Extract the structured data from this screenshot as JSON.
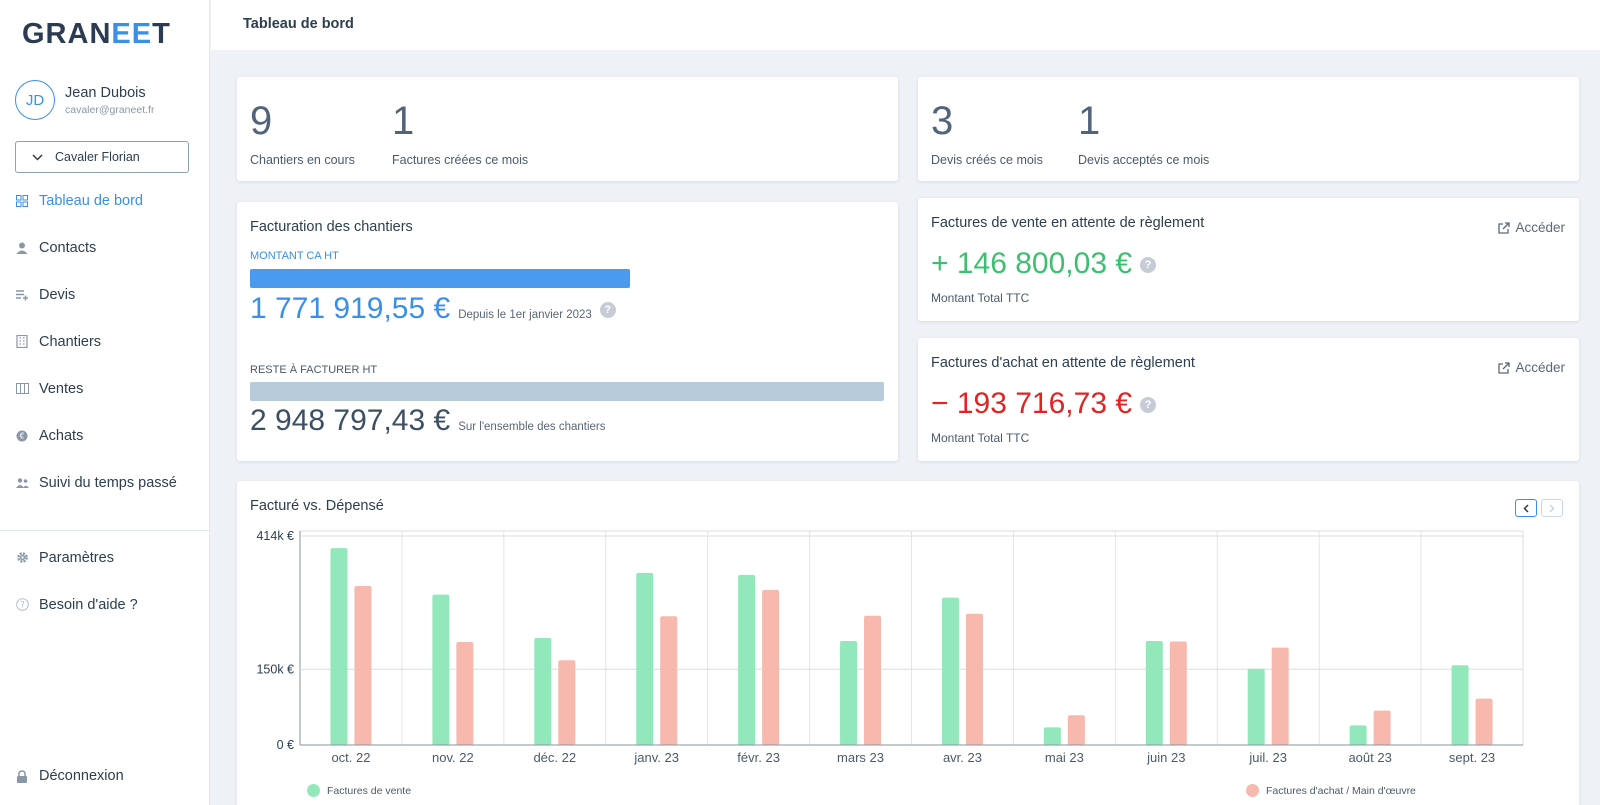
{
  "app": {
    "logo_text_1": "GRAN",
    "logo_text_2": "EE",
    "logo_text_3": "T"
  },
  "user": {
    "initials": "JD",
    "name": "Jean Dubois",
    "email": "cavaler@graneet.fr",
    "company": "Cavaler Florian"
  },
  "sidebar": {
    "items": [
      {
        "label": "Tableau de bord",
        "icon": "dashboard-icon"
      },
      {
        "label": "Contacts",
        "icon": "person-icon"
      },
      {
        "label": "Devis",
        "icon": "list-add-icon"
      },
      {
        "label": "Chantiers",
        "icon": "building-icon"
      },
      {
        "label": "Ventes",
        "icon": "columns-icon"
      },
      {
        "label": "Achats",
        "icon": "euro-coin-icon"
      },
      {
        "label": "Suivi du temps passé",
        "icon": "people-icon"
      }
    ],
    "bottom_items": [
      {
        "label": "Paramètres",
        "icon": "gear-icon"
      },
      {
        "label": "Besoin d'aide ?",
        "icon": "help-icon"
      }
    ],
    "logout": "Déconnexion"
  },
  "header": {
    "title": "Tableau de bord"
  },
  "stats_left": {
    "a_value": "9",
    "a_label": "Chantiers en cours",
    "b_value": "1",
    "b_label": "Factures créées ce mois"
  },
  "stats_right": {
    "a_value": "3",
    "a_label": "Devis créés ce mois",
    "b_value": "1",
    "b_label": "Devis acceptés ce mois"
  },
  "billing": {
    "title": "Facturation des chantiers",
    "ca_label": "MONTANT CA HT",
    "ca_amount": "1 771 919,55 €",
    "ca_note": "Depuis le 1er janvier 2023",
    "ca_fraction": 0.6,
    "rest_label": "RESTE À FACTURER HT",
    "rest_amount": "2 948 797,43 €",
    "rest_note": "Sur l'ensemble des chantiers",
    "rest_fraction": 1.0
  },
  "sales_pending": {
    "title": "Factures de vente en attente de règlement",
    "link": "Accéder",
    "amount": "+ 146 800,03 €",
    "sub": "Montant Total TTC",
    "color": "#3cc06f"
  },
  "purchase_pending": {
    "title": "Factures d'achat en attente de règlement",
    "link": "Accéder",
    "amount": "− 193 716,73 €",
    "sub": "Montant Total TTC",
    "color": "#e02424"
  },
  "colors": {
    "accent": "#3a8fe8",
    "sales_bar": "#93e8bb",
    "purchase_bar": "#f7b8ae",
    "rest_bar": "#b8cbdb"
  },
  "chart_data": {
    "type": "bar",
    "title": "Facturé vs. Dépensé",
    "categories": [
      "oct. 22",
      "nov. 22",
      "déc. 22",
      "janv. 23",
      "févr. 23",
      "mars 23",
      "avr. 23",
      "mai 23",
      "juin 23",
      "juil. 23",
      "août 23",
      "sept. 23"
    ],
    "series": [
      {
        "name": "Factures de vente",
        "values": [
          390,
          298,
          212,
          341,
          337,
          206,
          292,
          35,
          206,
          151,
          39,
          158
        ]
      },
      {
        "name": "Factures d'achat / Main d'œuvre",
        "values": [
          315,
          204,
          168,
          255,
          307,
          256,
          260,
          59,
          205,
          193,
          68,
          92
        ]
      }
    ],
    "ylim": [
      0,
      424
    ],
    "yticks": [
      {
        "value": 0,
        "label": "0 €"
      },
      {
        "value": 150,
        "label": "150k €"
      },
      {
        "value": 414,
        "label": "414k €"
      }
    ],
    "legend": "bottom",
    "grid": true
  }
}
